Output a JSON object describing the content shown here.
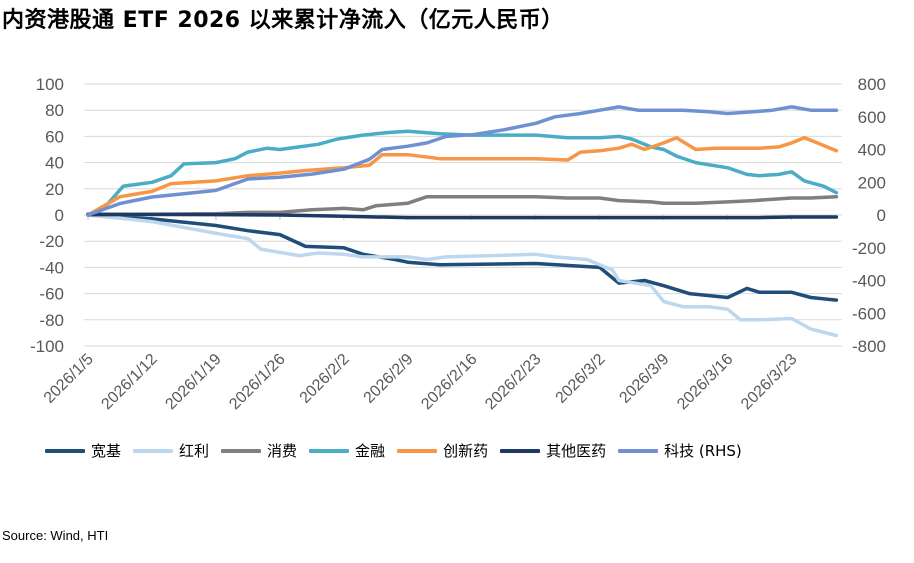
{
  "title": "内资港股通 ETF 2026 以来累计净流入（亿元人民币）",
  "source": "Source: Wind, HTI",
  "chart_data": {
    "type": "line",
    "title": "内资港股通 ETF 2026 以来累计净流入（亿元人民币）",
    "x_tick_labels": [
      "2026/1/5",
      "2026/1/12",
      "2026/1/19",
      "2026/1/26",
      "2026/2/2",
      "2026/2/9",
      "2026/2/16",
      "2026/2/23",
      "2026/3/2",
      "2026/3/9",
      "2026/3/16",
      "2026/3/23"
    ],
    "y_left": {
      "min": -100,
      "max": 100,
      "step": 20,
      "ticks": [
        100,
        80,
        60,
        40,
        20,
        0,
        -20,
        -40,
        -60,
        -80,
        -100
      ]
    },
    "y_right": {
      "min": -800,
      "max": 800,
      "step": 200,
      "ticks": [
        800,
        600,
        400,
        200,
        0,
        -200,
        -400,
        -600,
        -800
      ]
    },
    "legend_position": "bottom",
    "series": [
      {
        "name": "宽基",
        "axis": "left",
        "color": "#1f4e79",
        "width": 3.5,
        "points": [
          [
            0,
            0
          ],
          [
            1,
            -3
          ],
          [
            2,
            -8
          ],
          [
            2.5,
            -12
          ],
          [
            3,
            -15
          ],
          [
            3.4,
            -24
          ],
          [
            4,
            -25
          ],
          [
            4.3,
            -30
          ],
          [
            4.8,
            -34
          ],
          [
            5,
            -36
          ],
          [
            5.5,
            -38
          ],
          [
            7,
            -37
          ],
          [
            8,
            -40
          ],
          [
            8.3,
            -52
          ],
          [
            8.7,
            -50
          ],
          [
            9,
            -54
          ],
          [
            9.4,
            -60
          ],
          [
            10,
            -63
          ],
          [
            10.3,
            -56
          ],
          [
            10.5,
            -59
          ],
          [
            11,
            -59
          ],
          [
            11.3,
            -63
          ],
          [
            11.7,
            -65
          ]
        ]
      },
      {
        "name": "红利",
        "axis": "left",
        "color": "#bdd7ee",
        "width": 3.5,
        "points": [
          [
            0,
            0
          ],
          [
            1,
            -5
          ],
          [
            2,
            -14
          ],
          [
            2.5,
            -18
          ],
          [
            2.7,
            -26
          ],
          [
            3.3,
            -31
          ],
          [
            3.6,
            -29
          ],
          [
            4,
            -30
          ],
          [
            4.3,
            -32
          ],
          [
            5,
            -32
          ],
          [
            5.3,
            -34
          ],
          [
            5.6,
            -32
          ],
          [
            7,
            -30
          ],
          [
            7.3,
            -32
          ],
          [
            7.8,
            -34
          ],
          [
            8.2,
            -42
          ],
          [
            8.3,
            -50
          ],
          [
            8.8,
            -54
          ],
          [
            9,
            -66
          ],
          [
            9.3,
            -70
          ],
          [
            9.7,
            -70
          ],
          [
            10,
            -72
          ],
          [
            10.2,
            -80
          ],
          [
            10.5,
            -80
          ],
          [
            11,
            -79
          ],
          [
            11.3,
            -87
          ],
          [
            11.7,
            -92
          ]
        ]
      },
      {
        "name": "消费",
        "axis": "left",
        "color": "#7f7f7f",
        "width": 3.5,
        "points": [
          [
            0,
            0
          ],
          [
            1,
            0.5
          ],
          [
            2,
            1
          ],
          [
            2.5,
            2
          ],
          [
            3,
            2
          ],
          [
            3.5,
            4
          ],
          [
            4,
            5
          ],
          [
            4.3,
            4
          ],
          [
            4.5,
            7
          ],
          [
            5,
            9
          ],
          [
            5.3,
            14
          ],
          [
            6,
            14
          ],
          [
            7,
            14
          ],
          [
            7.5,
            13
          ],
          [
            8,
            13
          ],
          [
            8.3,
            11
          ],
          [
            8.8,
            10
          ],
          [
            9,
            9
          ],
          [
            9.5,
            9
          ],
          [
            10,
            10
          ],
          [
            10.4,
            11
          ],
          [
            11,
            13
          ],
          [
            11.3,
            13
          ],
          [
            11.7,
            14
          ]
        ]
      },
      {
        "name": "金融",
        "axis": "left",
        "color": "#4bacc6",
        "width": 3.5,
        "points": [
          [
            0,
            0
          ],
          [
            0.3,
            8
          ],
          [
            0.55,
            22
          ],
          [
            1,
            25
          ],
          [
            1.3,
            30
          ],
          [
            1.5,
            39
          ],
          [
            2,
            40
          ],
          [
            2.3,
            43
          ],
          [
            2.5,
            48
          ],
          [
            2.8,
            51
          ],
          [
            3,
            50
          ],
          [
            3.3,
            52
          ],
          [
            3.6,
            54
          ],
          [
            3.9,
            58
          ],
          [
            4.3,
            61
          ],
          [
            4.7,
            63
          ],
          [
            5,
            64
          ],
          [
            5.5,
            62
          ],
          [
            6,
            61
          ],
          [
            7,
            61
          ],
          [
            7.5,
            59
          ],
          [
            8,
            59
          ],
          [
            8.3,
            60
          ],
          [
            8.5,
            58
          ],
          [
            8.8,
            52
          ],
          [
            9,
            50
          ],
          [
            9.2,
            45
          ],
          [
            9.5,
            40
          ],
          [
            10,
            36
          ],
          [
            10.3,
            31
          ],
          [
            10.5,
            30
          ],
          [
            10.8,
            31
          ],
          [
            11,
            33
          ],
          [
            11.2,
            26
          ],
          [
            11.5,
            22
          ],
          [
            11.7,
            17
          ]
        ]
      },
      {
        "name": "创新药",
        "axis": "left",
        "color": "#f79646",
        "width": 3.5,
        "points": [
          [
            0,
            0
          ],
          [
            0.5,
            14
          ],
          [
            1,
            18
          ],
          [
            1.3,
            24
          ],
          [
            2,
            26
          ],
          [
            2.5,
            30
          ],
          [
            3,
            32
          ],
          [
            3.4,
            34
          ],
          [
            4,
            36
          ],
          [
            4.4,
            38
          ],
          [
            4.6,
            46
          ],
          [
            5,
            46
          ],
          [
            5.5,
            43
          ],
          [
            6,
            43
          ],
          [
            7,
            43
          ],
          [
            7.5,
            42
          ],
          [
            7.7,
            48
          ],
          [
            8,
            49
          ],
          [
            8.3,
            51
          ],
          [
            8.5,
            54
          ],
          [
            8.7,
            50
          ],
          [
            9,
            55
          ],
          [
            9.2,
            59
          ],
          [
            9.5,
            50
          ],
          [
            9.8,
            51
          ],
          [
            10,
            51
          ],
          [
            10.5,
            51
          ],
          [
            10.8,
            52
          ],
          [
            11,
            55
          ],
          [
            11.2,
            59
          ],
          [
            11.4,
            55
          ],
          [
            11.7,
            49
          ]
        ]
      },
      {
        "name": "其他医药",
        "axis": "left",
        "color": "#203864",
        "width": 3.5,
        "points": [
          [
            0,
            0.5
          ],
          [
            2,
            0.3
          ],
          [
            3,
            0
          ],
          [
            4,
            -1
          ],
          [
            5,
            -2
          ],
          [
            6,
            -2
          ],
          [
            7,
            -2
          ],
          [
            8,
            -2
          ],
          [
            8.5,
            -2
          ],
          [
            9,
            -2
          ],
          [
            9.5,
            -2
          ],
          [
            10,
            -2
          ],
          [
            10.5,
            -2
          ],
          [
            11,
            -1.5
          ],
          [
            11.5,
            -1.5
          ],
          [
            11.7,
            -1.5
          ]
        ]
      },
      {
        "name": "科技 (RHS)",
        "axis": "right",
        "color": "#6f91d1",
        "width": 3.5,
        "points": [
          [
            0,
            0
          ],
          [
            0.5,
            70
          ],
          [
            1,
            110
          ],
          [
            1.5,
            130
          ],
          [
            2,
            150
          ],
          [
            2.5,
            220
          ],
          [
            3,
            230
          ],
          [
            3.5,
            250
          ],
          [
            4,
            280
          ],
          [
            4.4,
            340
          ],
          [
            4.6,
            400
          ],
          [
            5,
            420
          ],
          [
            5.3,
            440
          ],
          [
            5.6,
            480
          ],
          [
            6,
            490
          ],
          [
            6.5,
            520
          ],
          [
            7,
            560
          ],
          [
            7.3,
            600
          ],
          [
            7.7,
            620
          ],
          [
            8,
            640
          ],
          [
            8.3,
            660
          ],
          [
            8.6,
            640
          ],
          [
            9,
            640
          ],
          [
            9.3,
            640
          ],
          [
            9.7,
            630
          ],
          [
            10,
            620
          ],
          [
            10.4,
            630
          ],
          [
            10.7,
            640
          ],
          [
            11,
            660
          ],
          [
            11.3,
            640
          ],
          [
            11.7,
            640
          ]
        ]
      }
    ]
  }
}
